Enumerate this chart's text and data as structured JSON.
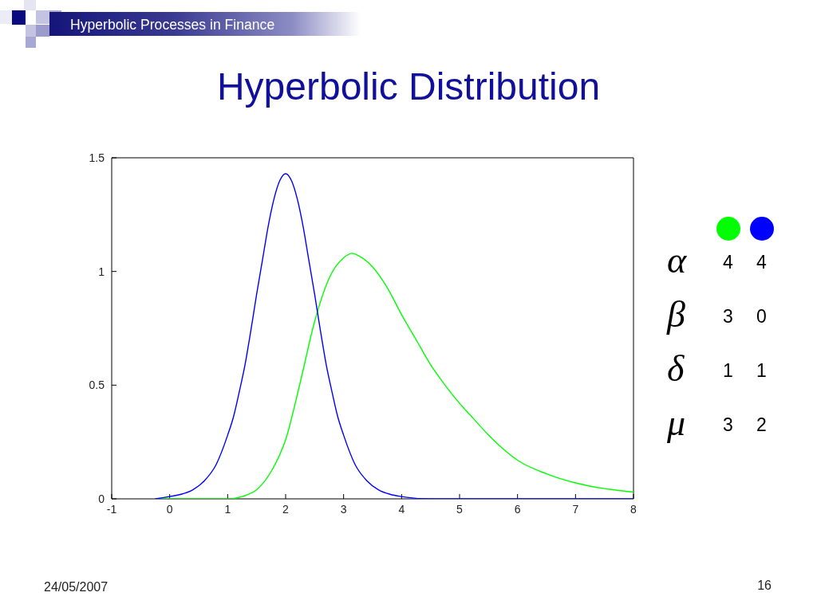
{
  "chart_data": {
    "type": "line",
    "title": "Hyperbolic Distribution",
    "annotations": [
      "Hyperbolic Processes in Finance",
      "24/05/2007",
      "16",
      "α 4 4",
      "β 3 0",
      "δ 1 1",
      "μ 3 2"
    ],
    "xlim": [
      -1,
      8
    ],
    "xticks": [
      -1,
      0,
      1,
      2,
      3,
      4,
      5,
      6,
      7,
      8
    ],
    "ylim": [
      0,
      1.5
    ],
    "yticks": [
      0,
      0.5,
      1,
      1.5
    ],
    "marker": "none",
    "line_style": "solid",
    "series": [
      {
        "color": "#00ff00",
        "x": [
          -0.25,
          0.5,
          1,
          1.25,
          1.5,
          1.75,
          2,
          2.25,
          2.5,
          2.75,
          3,
          3.15,
          3.25,
          3.5,
          3.75,
          4,
          4.25,
          4.5,
          4.75,
          5,
          5.25,
          5.5,
          5.75,
          6,
          6.5,
          7,
          7.5,
          8
        ],
        "values": [
          0,
          0,
          0,
          0.01,
          0.04,
          0.12,
          0.26,
          0.51,
          0.78,
          0.97,
          1.06,
          1.08,
          1.07,
          1.02,
          0.93,
          0.81,
          0.7,
          0.59,
          0.5,
          0.42,
          0.35,
          0.28,
          0.22,
          0.17,
          0.11,
          0.07,
          0.045,
          0.03
        ]
      },
      {
        "color": "#0000ff",
        "x": [
          -0.25,
          0,
          0.2,
          0.4,
          0.6,
          0.8,
          1,
          1.1,
          1.2,
          1.3,
          1.4,
          1.5,
          1.6,
          1.7,
          1.8,
          1.9,
          2,
          2.1,
          2.2,
          2.3,
          2.4,
          2.5,
          2.6,
          2.7,
          2.8,
          2.9,
          3,
          3.2,
          3.4,
          3.6,
          3.8,
          4,
          4.5,
          5,
          6,
          7,
          8
        ],
        "values": [
          0,
          0.01,
          0.02,
          0.04,
          0.08,
          0.15,
          0.28,
          0.36,
          0.47,
          0.59,
          0.74,
          0.9,
          1.05,
          1.2,
          1.32,
          1.4,
          1.43,
          1.4,
          1.32,
          1.2,
          1.05,
          0.9,
          0.74,
          0.59,
          0.47,
          0.36,
          0.28,
          0.15,
          0.08,
          0.04,
          0.02,
          0.01,
          0,
          0,
          0,
          0,
          0
        ]
      }
    ]
  }
}
